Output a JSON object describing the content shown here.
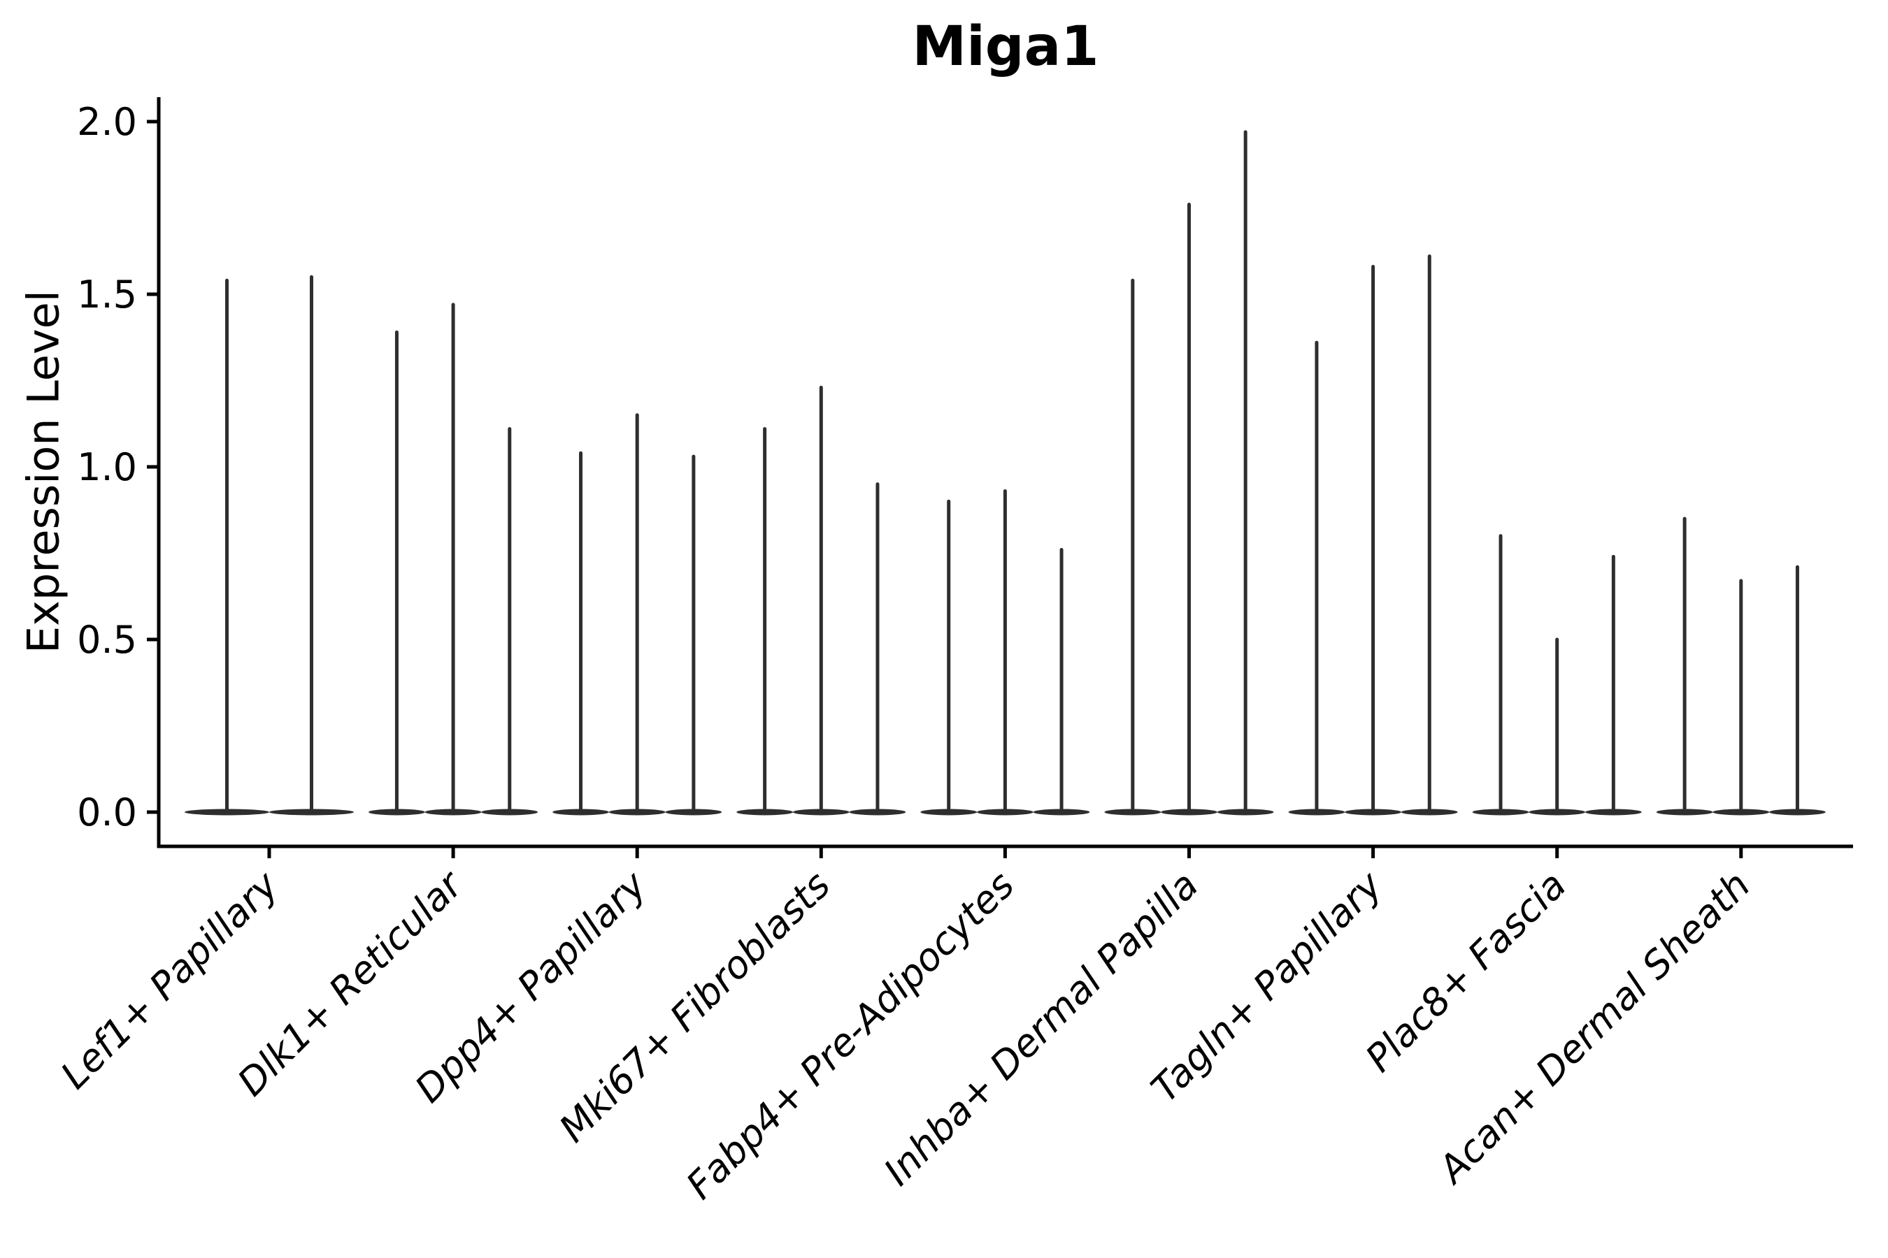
{
  "chart_data": {
    "type": "violin",
    "title": "Miga1",
    "ylabel": "Expression Level",
    "xlabel": "",
    "grid": false,
    "legend": null,
    "ylim": [
      -0.1,
      2.07
    ],
    "yticks": [
      0.0,
      0.5,
      1.0,
      1.5,
      2.0
    ],
    "ytick_labels": [
      "0.0",
      "0.5",
      "1.0",
      "1.5",
      "2.0"
    ],
    "categories": [
      "Lef1+ Papillary",
      "Dlk1+ Reticular",
      "Dpp4+ Papillary",
      "Mki67+ Fibroblasts",
      "Fabp4+ Pre-Adipocytes",
      "Inhba+ Dermal Papilla",
      "Tagln+ Papillary",
      "Plac8+ Fascia",
      "Acan+ Dermal Sheath"
    ],
    "groups": [
      {
        "category": "Lef1+ Papillary",
        "violin_min": 0,
        "violin_maxima": [
          1.54,
          1.55
        ]
      },
      {
        "category": "Dlk1+ Reticular",
        "violin_min": 0,
        "violin_maxima": [
          1.39,
          1.47,
          1.11
        ]
      },
      {
        "category": "Dpp4+ Papillary",
        "violin_min": 0,
        "violin_maxima": [
          1.04,
          1.15,
          1.03
        ]
      },
      {
        "category": "Mki67+ Fibroblasts",
        "violin_min": 0,
        "violin_maxima": [
          1.11,
          1.23,
          0.95
        ]
      },
      {
        "category": "Fabp4+ Pre-Adipocytes",
        "violin_min": 0,
        "violin_maxima": [
          0.9,
          0.93,
          0.76
        ]
      },
      {
        "category": "Inhba+ Dermal Papilla",
        "violin_min": 0,
        "violin_maxima": [
          1.54,
          1.76,
          1.97
        ]
      },
      {
        "category": "Tagln+ Papillary",
        "violin_min": 0,
        "violin_maxima": [
          1.36,
          1.58,
          1.61
        ]
      },
      {
        "category": "Plac8+ Fascia",
        "violin_min": 0,
        "violin_maxima": [
          0.8,
          0.5,
          0.74
        ]
      },
      {
        "category": "Acan+ Dermal Sheath",
        "violin_min": 0,
        "violin_maxima": [
          0.85,
          0.67,
          0.71
        ]
      }
    ],
    "colors": {
      "violin": "#2e2e2e",
      "axis": "#000000",
      "text": "#000000",
      "background": "#ffffff"
    }
  }
}
